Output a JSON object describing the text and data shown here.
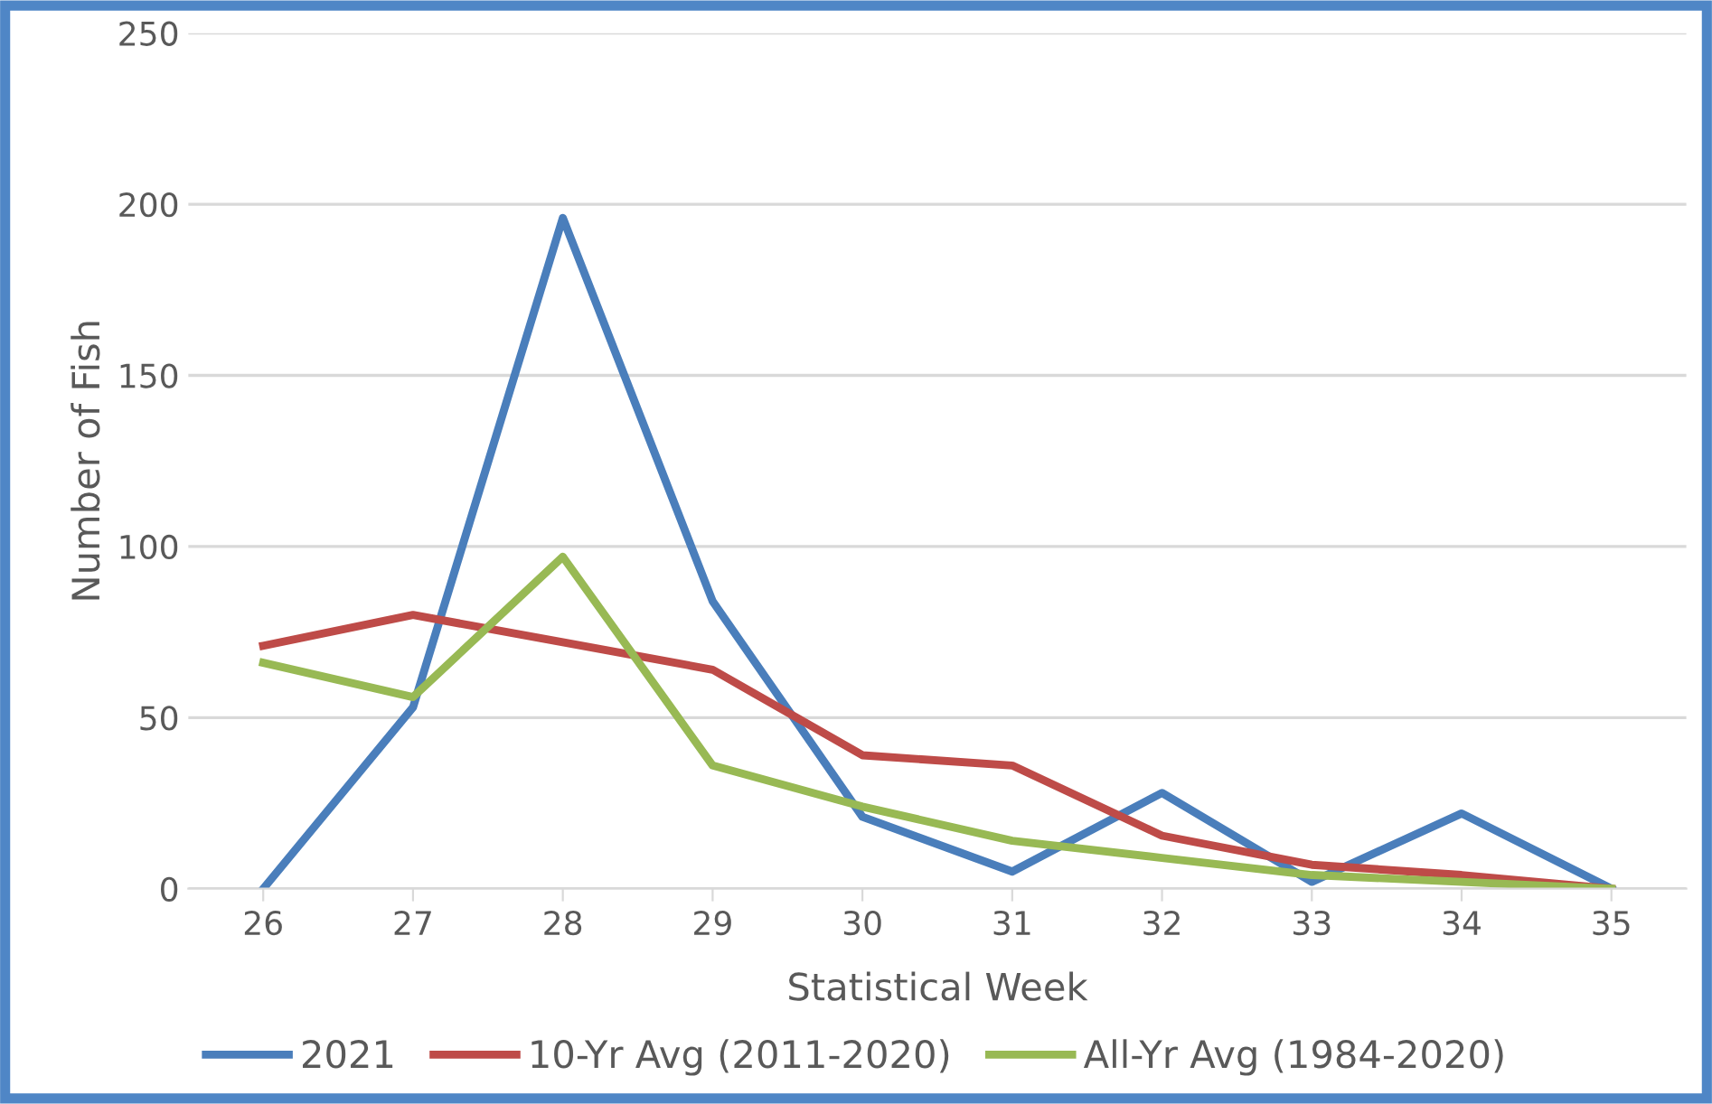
{
  "chart_data": {
    "type": "line",
    "xlabel": "Statistical Week",
    "ylabel": "Number of Fish",
    "categories": [
      "26",
      "27",
      "28",
      "29",
      "30",
      "31",
      "32",
      "33",
      "34",
      "35"
    ],
    "series": [
      {
        "name": "2021",
        "color": "#4a7ebb",
        "values": [
          0,
          53,
          196,
          84,
          21,
          5,
          28,
          2,
          22,
          0
        ]
      },
      {
        "name": "10-Yr Avg (2011-2020)",
        "color": "#be4b48",
        "values": [
          71,
          80,
          72,
          64,
          39,
          36,
          15.5,
          7,
          4,
          0
        ]
      },
      {
        "name": "All-Yr Avg (1984-2020)",
        "color": "#98b954",
        "values": [
          66,
          56,
          97,
          36,
          24,
          14,
          9,
          4,
          2,
          0
        ]
      }
    ],
    "ylim": [
      0,
      250
    ],
    "yticks": [
      0,
      50,
      100,
      150,
      200,
      250
    ],
    "grid": "y",
    "legend": "bottom",
    "marker": "none",
    "line_style": "solid"
  }
}
